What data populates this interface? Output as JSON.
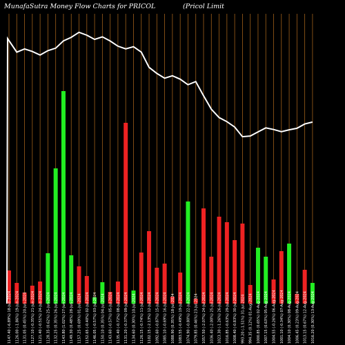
{
  "chart_data": {
    "type": "bar",
    "title_left": "MunafaSutra  Money Flow  Charts for PRICOL",
    "title_right": "(Pricol Limit",
    "colors": {
      "background": "#000000",
      "grid": "#a0601a",
      "up": "#22ee22",
      "down": "#ee2222",
      "line": "#ffffff"
    },
    "categories": [
      "1147.40 (-6.89%) 18-Jun-2024",
      "1126.00 (-1.86%) 19-Jun-2024",
      "1131.05 (0.45%) 20-Jun-2024",
      "1127.10 (-0.35%) 21-Jun-2024",
      "1121.40 (-0.51%) 24-Jun-2024",
      "1128.35 (0.62%) 25-Jun-2024",
      "1132.25 (0.35%) 26-Jun-2024",
      "1143.80 (1.02%) 27-Jun-2024",
      "1149.30 (0.48%) 28-Jun-2024",
      "1157.25 (0.69%) 01-Jul-2024",
      "1152.65 (-0.40%) 02-Jul-2024",
      "1146.05 (-0.57%) 03-Jul-2024",
      "1150.10 (0.35%) 04-Jul-2024",
      "1143.60 (-0.57%) 05-Jul-2024",
      "1135.40 (-0.72%) 08-Jul-2024",
      "1131.20 (-0.37%) 09-Jul-2024",
      "1134.60 (0.30%) 10-Jul-2024",
      "1126.15 (-0.74%) 11-Jul-2024",
      "1102.15 (-2.13%) 12-Jul-2024",
      "1092.60 (-0.87%) 15-Jul-2024",
      "1085.10 (-0.69%) 16-Jul-2024",
      "1088.90 (0.35%) 18-Jul-2024",
      "1083.55 (-0.49%) 19-Jul-2024",
      "1074.90 (-0.80%) 22-Jul-2024",
      "1079.85 (0.46%) 23-Jul-2024",
      "1057.50 (-2.07%) 24-Jul-2024",
      "1036.40 (-2.00%) 25-Jul-2024",
      "1023.30 (-1.26%) 26-Jul-2024",
      "1016.85 (-0.63%) 29-Jul-2024",
      "1008.40 (-0.83%) 30-Jul-2024",
      "993.20 (-1.51%) 31-Jul-2024",
      "994.35 (0.12%) 01-Aug-2024",
      "1000.85 (0.65%) 02-Aug-2024",
      "1007.15 (0.63%) 05-Aug-2024",
      "1004.55 (-0.26%) 06-Aug-2024",
      "1001.10 (-0.34%) 07-Aug-2024",
      "1004.10 (0.30%) 08-Aug-2024",
      "1006.45 (0.23%) 09-Aug-2024",
      "1013.15 (0.67%) 12-Aug-2024",
      "1016.20 (0.30%) 13-Aug-2024"
    ],
    "values": [
      48,
      30,
      16,
      26,
      32,
      73,
      196,
      308,
      70,
      54,
      40,
      9,
      31,
      17,
      32,
      262,
      19,
      74,
      105,
      52,
      58,
      10,
      45,
      148,
      7,
      138,
      68,
      126,
      118,
      92,
      116,
      27,
      81,
      68,
      35,
      76,
      87,
      14,
      49,
      30
    ],
    "directions": [
      "down",
      "down",
      "down",
      "down",
      "down",
      "up",
      "up",
      "up",
      "up",
      "down",
      "down",
      "up",
      "up",
      "down",
      "down",
      "down",
      "up",
      "down",
      "down",
      "down",
      "down",
      "down",
      "down",
      "up",
      "down",
      "down",
      "down",
      "down",
      "down",
      "down",
      "down",
      "down",
      "up",
      "up",
      "down",
      "down",
      "up",
      "down",
      "down",
      "up"
    ],
    "price_line": [
      1147.4,
      1126.0,
      1131.05,
      1127.1,
      1121.4,
      1128.35,
      1132.25,
      1143.8,
      1149.3,
      1157.25,
      1152.65,
      1146.05,
      1150.1,
      1143.6,
      1135.4,
      1131.2,
      1134.6,
      1126.15,
      1102.15,
      1092.6,
      1085.1,
      1088.9,
      1083.55,
      1074.9,
      1079.85,
      1057.5,
      1036.4,
      1023.3,
      1016.85,
      1008.4,
      993.2,
      994.35,
      1000.85,
      1007.15,
      1004.55,
      1001.1,
      1004.1,
      1006.45,
      1013.15,
      1016.2
    ],
    "ylim_volume": [
      0,
      360
    ],
    "ylim_price": [
      950,
      1170
    ],
    "grid": true,
    "legend": "none"
  }
}
